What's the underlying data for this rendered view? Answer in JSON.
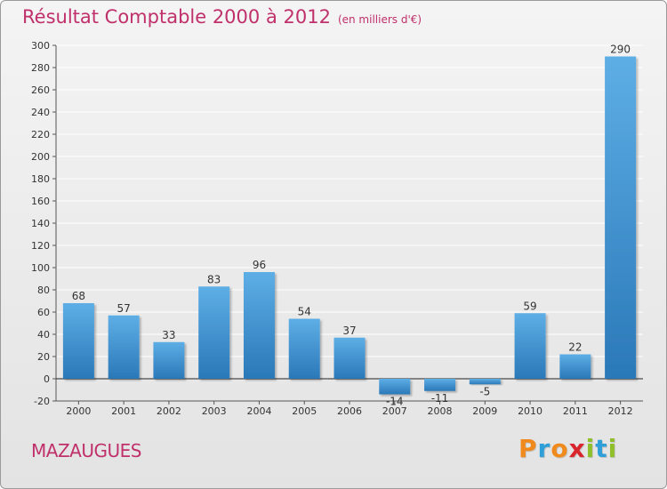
{
  "header": {
    "title": "Résultat Comptable 2000 à 2012",
    "subtitle": "(en milliers d'€)"
  },
  "footer": {
    "town": "MAZAUGUES",
    "logo": "Proxiti",
    "logo_letters": [
      {
        "ch": "P",
        "color": "#f08a1c"
      },
      {
        "ch": "r",
        "color": "#2e9fd8"
      },
      {
        "ch": "o",
        "color": "#f08a1c"
      },
      {
        "ch": "x",
        "color": "#d9262e"
      },
      {
        "ch": "i",
        "color": "#8fbf2a"
      },
      {
        "ch": "t",
        "color": "#2e9fd8"
      },
      {
        "ch": "i",
        "color": "#8fbf2a"
      }
    ]
  },
  "colors": {
    "title": "#c0306b",
    "bar_light": "#5eaee6",
    "bar_dark": "#2a78b8",
    "grid": "#ffffff",
    "axis": "#555555"
  },
  "chart_data": {
    "type": "bar",
    "title": "Résultat Comptable 2000 à 2012",
    "subtitle": "(en milliers d'€)",
    "xlabel": "",
    "ylabel": "",
    "categories": [
      "2000",
      "2001",
      "2002",
      "2003",
      "2004",
      "2005",
      "2006",
      "2007",
      "2008",
      "2009",
      "2010",
      "2011",
      "2012"
    ],
    "values": [
      68,
      57,
      33,
      83,
      96,
      54,
      37,
      -14,
      -11,
      -5,
      59,
      22,
      290
    ],
    "labels": [
      "68",
      "57",
      "33",
      "83",
      "96",
      "54",
      "37",
      "-14",
      "-11",
      "-5",
      "59",
      "22",
      "290"
    ],
    "ylim": [
      -20,
      300
    ],
    "yticks": [
      -20,
      0,
      20,
      40,
      60,
      80,
      100,
      120,
      140,
      160,
      180,
      200,
      220,
      240,
      260,
      280,
      300
    ],
    "grid": true
  }
}
